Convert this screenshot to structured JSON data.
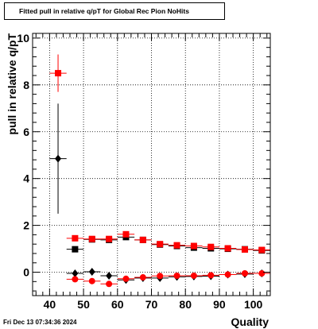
{
  "title": "Fitted pull in relative q/pT for Global Rec Pion NoHits",
  "footer_date": "Fri Dec 13 07:34:36 2024",
  "chart_data": {
    "type": "scatter",
    "title": "Fitted pull in relative q/pT for Global Rec Pion NoHits",
    "xlabel": "Quality",
    "ylabel": "pull in relative q/pT",
    "xlim": [
      35,
      105
    ],
    "ylim": [
      -1,
      10.2
    ],
    "xticks": [
      40,
      50,
      60,
      70,
      80,
      90,
      100
    ],
    "yticks": [
      0,
      2,
      4,
      6,
      8,
      10
    ],
    "grid": true,
    "series": [
      {
        "marker": "diamond",
        "color": "#000000",
        "x": [
          42.5,
          47.5,
          52.5,
          57.5,
          62.5,
          67.5,
          72.5,
          77.5,
          82.5,
          87.5,
          92.5,
          97.5,
          102.5
        ],
        "y": [
          4.85,
          -0.05,
          0.02,
          -0.15,
          -0.33,
          -0.25,
          -0.25,
          -0.2,
          -0.18,
          -0.17,
          -0.1,
          -0.08,
          -0.05
        ],
        "yerr": [
          2.35,
          0.08,
          0.08,
          0.08,
          0.08,
          0.06,
          0.06,
          0.05,
          0.05,
          0.05,
          0.05,
          0.05,
          0.05
        ]
      },
      {
        "marker": "circle",
        "color": "#ff0000",
        "x": [
          47.5,
          52.5,
          57.5,
          62.5,
          67.5,
          72.5,
          77.5,
          82.5,
          87.5,
          92.5,
          97.5,
          102.5
        ],
        "y": [
          -0.3,
          -0.38,
          -0.5,
          -0.28,
          -0.22,
          -0.16,
          -0.15,
          -0.15,
          -0.13,
          -0.1,
          -0.05,
          -0.05
        ],
        "yerr": [
          0.06,
          0.06,
          0.06,
          0.05,
          0.05,
          0.05,
          0.05,
          0.05,
          0.05,
          0.04,
          0.04,
          0.04
        ]
      },
      {
        "marker": "square",
        "color": "#000000",
        "x": [
          47.5,
          52.5,
          57.5,
          62.5,
          67.5,
          72.5,
          77.5,
          82.5,
          87.5,
          92.5,
          97.5,
          102.5
        ],
        "y": [
          0.98,
          1.4,
          1.38,
          1.5,
          1.38,
          1.18,
          1.12,
          1.05,
          1.02,
          1.0,
          0.98,
          0.93
        ],
        "yerr": [
          0.08,
          0.07,
          0.07,
          0.07,
          0.06,
          0.05,
          0.05,
          0.05,
          0.05,
          0.05,
          0.05,
          0.05
        ]
      },
      {
        "marker": "square",
        "color": "#ff0000",
        "x": [
          42.5,
          47.5,
          52.5,
          57.5,
          62.5,
          67.5,
          72.5,
          77.5,
          82.5,
          87.5,
          92.5,
          97.5,
          102.5
        ],
        "y": [
          8.5,
          1.45,
          1.42,
          1.42,
          1.62,
          1.38,
          1.2,
          1.15,
          1.12,
          1.08,
          1.02,
          0.97,
          0.95
        ],
        "yerr": [
          0.8,
          0.1,
          0.08,
          0.08,
          0.08,
          0.06,
          0.06,
          0.05,
          0.05,
          0.05,
          0.05,
          0.05,
          0.05
        ]
      }
    ]
  }
}
